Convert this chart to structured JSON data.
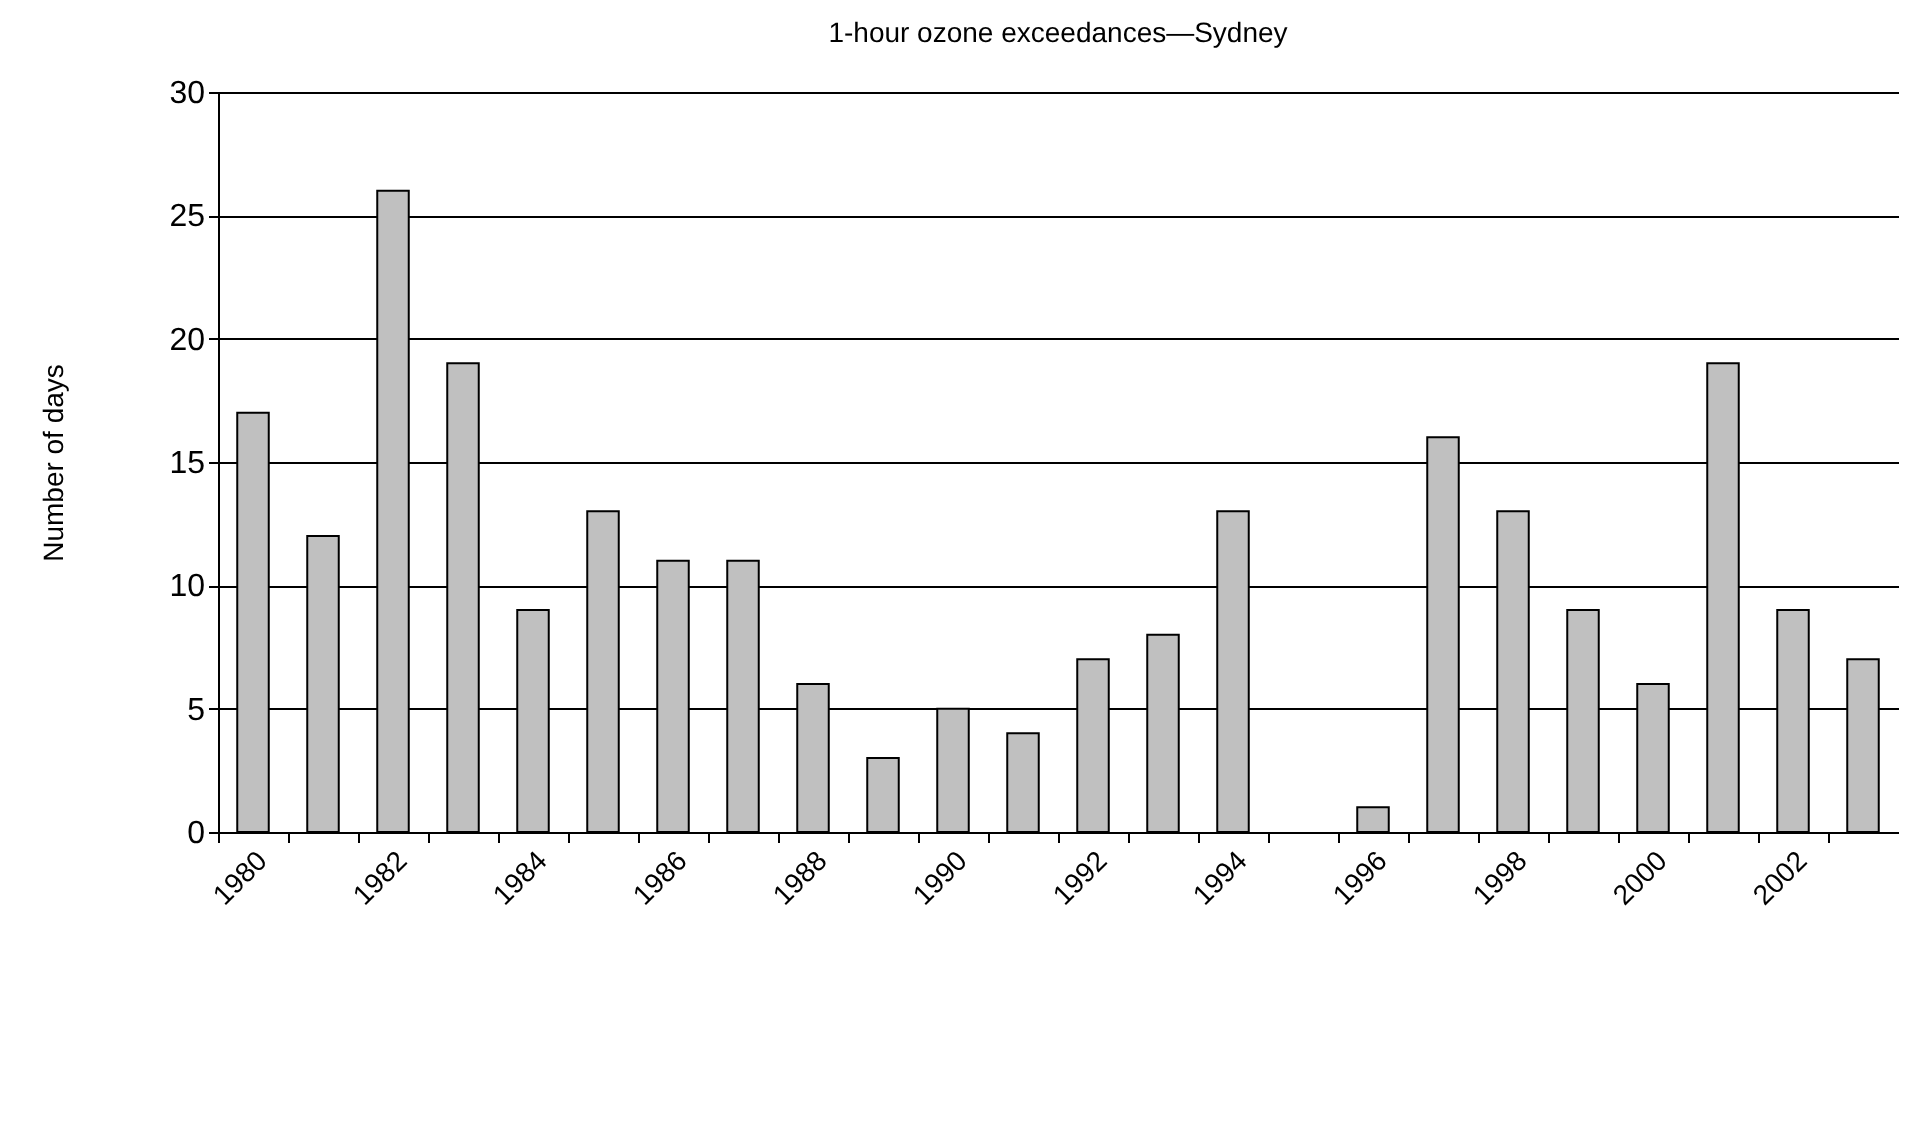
{
  "chart_data": {
    "type": "bar",
    "title": "1-hour ozone exceedances—Sydney",
    "ylabel": "Number of days",
    "categories": [
      "1980",
      null,
      "1982",
      null,
      "1984",
      null,
      "1986",
      null,
      "1988",
      null,
      "1990",
      null,
      "1992",
      null,
      "1994",
      null,
      "1996",
      null,
      "1998",
      null,
      "2000",
      null,
      "2002",
      null
    ],
    "values": [
      17,
      12,
      26,
      19,
      9,
      13,
      11,
      11,
      6,
      3,
      5,
      4,
      7,
      8,
      13,
      0,
      1,
      16,
      13,
      9,
      6,
      19,
      9,
      7
    ],
    "color": "#c0c0c0",
    "ylim": [
      0,
      30
    ],
    "yticks": [
      0,
      5,
      10,
      15,
      20,
      25,
      30
    ],
    "grid": "y"
  }
}
